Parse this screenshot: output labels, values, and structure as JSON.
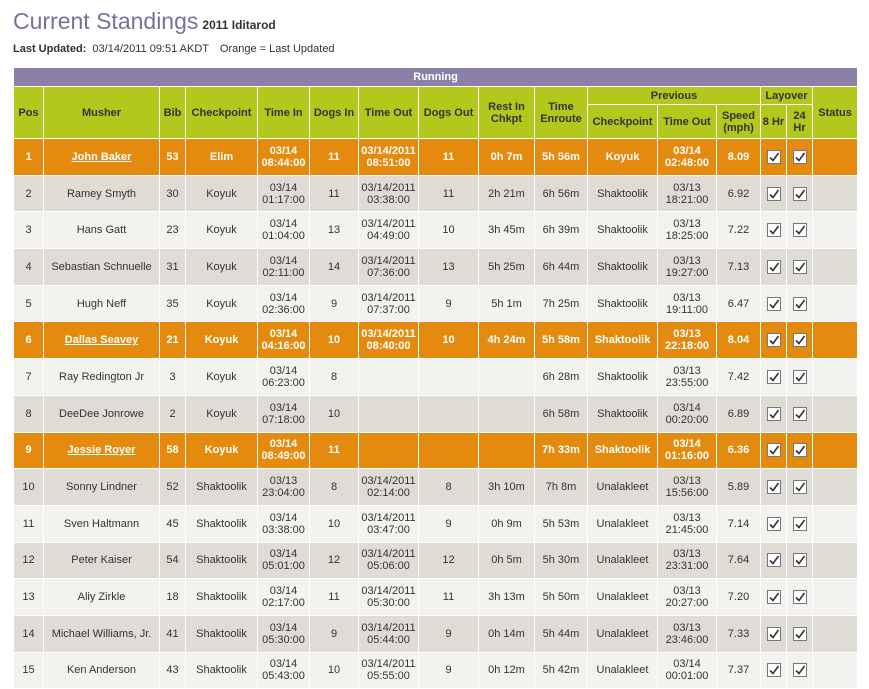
{
  "header": {
    "title": "Current Standings",
    "subtitle": "2011 Iditarod",
    "updated_label": "Last Updated:",
    "updated_value": "03/14/2011 09:51 AKDT",
    "legend_note": "Orange = Last Updated"
  },
  "table": {
    "caption": "Running",
    "columns": [
      "Pos",
      "Musher",
      "Bib",
      "Checkpoint",
      "Time In",
      "Dogs In",
      "Time Out",
      "Dogs Out",
      "Rest In Chkpt",
      "Time Enroute"
    ],
    "groups": [
      {
        "label": "Previous",
        "columns": [
          "Checkpoint",
          "Time Out",
          "Speed (mph)"
        ]
      },
      {
        "label": "Layover",
        "columns": [
          "8 Hr",
          "24 Hr"
        ]
      }
    ],
    "last_column": "Status",
    "rows": [
      {
        "highlighted": true,
        "layover": [
          true,
          true
        ],
        "cells": [
          "1",
          "John Baker",
          "53",
          "Elim",
          "03/14 08:44:00",
          "11",
          "03/14/2011 08:51:00",
          "11",
          "0h 7m",
          "5h 56m",
          "Koyuk",
          "03/14 02:48:00",
          "8.09"
        ]
      },
      {
        "highlighted": false,
        "layover": [
          true,
          true
        ],
        "cells": [
          "2",
          "Ramey Smyth",
          "30",
          "Koyuk",
          "03/14 01:17:00",
          "11",
          "03/14/2011 03:38:00",
          "11",
          "2h 21m",
          "6h 56m",
          "Shaktoolik",
          "03/13 18:21:00",
          "6.92"
        ]
      },
      {
        "highlighted": false,
        "layover": [
          true,
          true
        ],
        "cells": [
          "3",
          "Hans Gatt",
          "23",
          "Koyuk",
          "03/14 01:04:00",
          "13",
          "03/14/2011 04:49:00",
          "10",
          "3h 45m",
          "6h 39m",
          "Shaktoolik",
          "03/13 18:25:00",
          "7.22"
        ]
      },
      {
        "highlighted": false,
        "layover": [
          true,
          true
        ],
        "cells": [
          "4",
          "Sebastian Schnuelle",
          "31",
          "Koyuk",
          "03/14 02:11:00",
          "14",
          "03/14/2011 07:36:00",
          "13",
          "5h 25m",
          "6h 44m",
          "Shaktoolik",
          "03/13 19:27:00",
          "7.13"
        ]
      },
      {
        "highlighted": false,
        "layover": [
          true,
          true
        ],
        "cells": [
          "5",
          "Hugh Neff",
          "35",
          "Koyuk",
          "03/14 02:36:00",
          "9",
          "03/14/2011 07:37:00",
          "9",
          "5h 1m",
          "7h 25m",
          "Shaktoolik",
          "03/13 19:11:00",
          "6.47"
        ]
      },
      {
        "highlighted": true,
        "layover": [
          true,
          true
        ],
        "cells": [
          "6",
          "Dallas Seavey",
          "21",
          "Koyuk",
          "03/14 04:16:00",
          "10",
          "03/14/2011 08:40:00",
          "10",
          "4h 24m",
          "5h 58m",
          "Shaktoolik",
          "03/13 22:18:00",
          "8.04"
        ]
      },
      {
        "highlighted": false,
        "layover": [
          true,
          true
        ],
        "cells": [
          "7",
          "Ray Redington Jr",
          "3",
          "Koyuk",
          "03/14 06:23:00",
          "8",
          null,
          null,
          null,
          "6h 28m",
          "Shaktoolik",
          "03/13 23:55:00",
          "7.42"
        ]
      },
      {
        "highlighted": false,
        "layover": [
          true,
          true
        ],
        "cells": [
          "8",
          "DeeDee Jonrowe",
          "2",
          "Koyuk",
          "03/14 07:18:00",
          "10",
          null,
          null,
          null,
          "6h 58m",
          "Shaktoolik",
          "03/14 00:20:00",
          "6.89"
        ]
      },
      {
        "highlighted": true,
        "layover": [
          true,
          true
        ],
        "cells": [
          "9",
          "Jessie Royer",
          "58",
          "Koyuk",
          "03/14 08:49:00",
          "11",
          null,
          null,
          null,
          "7h 33m",
          "Shaktoolik",
          "03/14 01:16:00",
          "6.36"
        ]
      },
      {
        "highlighted": false,
        "layover": [
          true,
          true
        ],
        "cells": [
          "10",
          "Sonny Lindner",
          "52",
          "Shaktoolik",
          "03/13 23:04:00",
          "8",
          "03/14/2011 02:14:00",
          "8",
          "3h 10m",
          "7h 8m",
          "Unalakleet",
          "03/13 15:56:00",
          "5.89"
        ]
      },
      {
        "highlighted": false,
        "layover": [
          true,
          true
        ],
        "cells": [
          "11",
          "Sven Haltmann",
          "45",
          "Shaktoolik",
          "03/14 03:38:00",
          "10",
          "03/14/2011 03:47:00",
          "9",
          "0h 9m",
          "5h 53m",
          "Unalakleet",
          "03/13 21:45:00",
          "7.14"
        ]
      },
      {
        "highlighted": false,
        "layover": [
          true,
          true
        ],
        "cells": [
          "12",
          "Peter Kaiser",
          "54",
          "Shaktoolik",
          "03/14 05:01:00",
          "12",
          "03/14/2011 05:06:00",
          "12",
          "0h 5m",
          "5h 30m",
          "Unalakleet",
          "03/13 23:31:00",
          "7.64"
        ]
      },
      {
        "highlighted": false,
        "layover": [
          true,
          true
        ],
        "cells": [
          "13",
          "Aliy Zirkle",
          "18",
          "Shaktoolik",
          "03/14 02:17:00",
          "11",
          "03/14/2011 05:30:00",
          "11",
          "3h 13m",
          "5h 50m",
          "Unalakleet",
          "03/13 20:27:00",
          "7.20"
        ]
      },
      {
        "highlighted": false,
        "layover": [
          true,
          true
        ],
        "cells": [
          "14",
          "Michael Williams, Jr.",
          "41",
          "Shaktoolik",
          "03/14 05:30:00",
          "9",
          "03/14/2011 05:44:00",
          "9",
          "0h 14m",
          "5h 44m",
          "Unalakleet",
          "03/13 23:46:00",
          "7.33"
        ]
      },
      {
        "highlighted": false,
        "layover": [
          true,
          true
        ],
        "cells": [
          "15",
          "Ken Anderson",
          "43",
          "Shaktoolik",
          "03/14 05:43:00",
          "10",
          "03/14/2011 05:55:00",
          "9",
          "0h 12m",
          "5h 42m",
          "Unalakleet",
          "03/14 00:01:00",
          "7.37"
        ]
      }
    ]
  }
}
